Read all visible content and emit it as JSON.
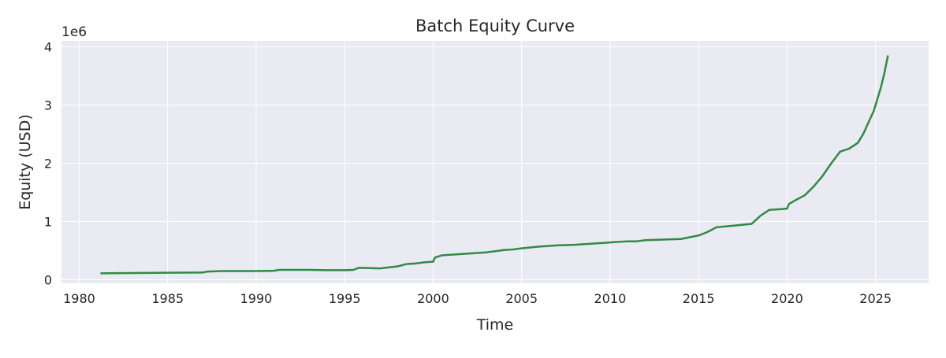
{
  "chart_data": {
    "type": "line",
    "title": "Batch Equity Curve",
    "xlabel": "Time",
    "ylabel": "Equity (USD)",
    "y_offset_label": "1e6",
    "y_multiplier": 1000000,
    "xlim": [
      1979.0,
      2028.0
    ],
    "ylim": [
      -60000,
      4100000
    ],
    "x_ticks": [
      1980,
      1985,
      1990,
      1995,
      2000,
      2005,
      2010,
      2015,
      2020,
      2025
    ],
    "x_tick_labels": [
      "1980",
      "1985",
      "1990",
      "1995",
      "2000",
      "2005",
      "2010",
      "2015",
      "2020",
      "2025"
    ],
    "y_ticks": [
      0,
      1000000,
      2000000,
      3000000,
      4000000
    ],
    "y_tick_labels": [
      "0",
      "1",
      "2",
      "3",
      "4"
    ],
    "grid": true,
    "colors": {
      "plot_background": "#eaeaf2",
      "grid": "#ffffff",
      "line": "#2e8b45"
    },
    "series": [
      {
        "x": [
          1981.2,
          1983.0,
          1985.0,
          1987.0,
          1987.2,
          1988.0,
          1990.0,
          1991.0,
          1991.3,
          1993.0,
          1994.0,
          1995.0,
          1995.5,
          1995.8,
          1997.0,
          1998.0,
          1998.5,
          1999.0,
          1999.5,
          2000.0,
          2000.1,
          2000.5,
          2001.0,
          2002.0,
          2003.0,
          2004.0,
          2004.5,
          2005.0,
          2006.0,
          2007.0,
          2008.0,
          2009.0,
          2010.0,
          2011.0,
          2011.5,
          2012.0,
          2013.0,
          2014.0,
          2014.5,
          2015.0,
          2015.5,
          2016.0,
          2017.0,
          2018.0,
          2018.5,
          2019.0,
          2020.0,
          2020.1,
          2020.5,
          2021.0,
          2021.5,
          2022.0,
          2022.5,
          2023.0,
          2023.5,
          2024.0,
          2024.3,
          2024.6,
          2024.9,
          2025.1,
          2025.3,
          2025.5,
          2025.7
        ],
        "values": [
          110000,
          115000,
          120000,
          125000,
          140000,
          150000,
          150000,
          155000,
          170000,
          170000,
          165000,
          165000,
          170000,
          205000,
          195000,
          230000,
          270000,
          280000,
          300000,
          310000,
          380000,
          420000,
          430000,
          450000,
          470000,
          510000,
          520000,
          540000,
          570000,
          590000,
          600000,
          620000,
          640000,
          660000,
          660000,
          680000,
          690000,
          700000,
          730000,
          760000,
          820000,
          900000,
          930000,
          960000,
          1100000,
          1200000,
          1220000,
          1300000,
          1370000,
          1450000,
          1600000,
          1780000,
          2000000,
          2200000,
          2250000,
          2350000,
          2500000,
          2700000,
          2900000,
          3100000,
          3300000,
          3550000,
          3850000
        ]
      }
    ]
  }
}
